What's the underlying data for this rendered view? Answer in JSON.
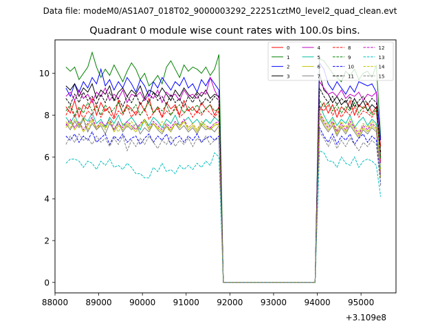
{
  "suptitle": "Data file: modeM0/AS1A07_018T02_9000003292_22251cztM0_level2_quad_clean.evt",
  "chart_data": {
    "type": "line",
    "title": "Quadrant 0 module wise count rates with 100.0s bins.",
    "xlabel": "",
    "ylabel": "",
    "x_offset_label": "+3.109e8",
    "xlim": [
      88000,
      95800
    ],
    "ylim": [
      -0.5,
      11.6
    ],
    "x_ticks": [
      88000,
      89000,
      90000,
      91000,
      92000,
      93000,
      94000,
      95000
    ],
    "x_tick_labels": [
      "88000",
      "89000",
      "90000",
      "91000",
      "92000",
      "93000",
      "94000",
      "95000"
    ],
    "y_ticks": [
      0,
      2,
      4,
      6,
      8,
      10
    ],
    "y_tick_labels": [
      "0",
      "2",
      "4",
      "6",
      "8",
      "10"
    ],
    "grid": false,
    "legend_position": "top-right",
    "legend_columns": 4,
    "x_seg1": [
      88250,
      88350,
      88450,
      88550,
      88650,
      88750,
      88850,
      88950,
      89050,
      89150,
      89250,
      89350,
      89450,
      89550,
      89650,
      89750,
      89850,
      89950,
      90050,
      90150,
      90250,
      90350,
      90450,
      90550,
      90650,
      90750,
      90850,
      90950,
      91050,
      91150,
      91250,
      91350,
      91450,
      91550,
      91650,
      91750,
      91850,
      91950,
      92050
    ],
    "x_seg2": [
      93950,
      94050,
      94150,
      94250,
      94350,
      94450,
      94550,
      94650,
      94750,
      94850,
      94950,
      95050,
      95150,
      95250,
      95350,
      95450
    ],
    "series": [
      {
        "name": "0",
        "color": "#ff0000",
        "dash": "solid",
        "seg1_start": [
          8.4,
          8.1,
          8.7,
          7.9,
          8.5,
          8.3,
          8.8,
          8.0,
          8.6,
          8.2,
          8.4,
          7.9,
          8.7,
          8.1,
          8.5,
          8.3,
          8.0,
          8.6,
          8.2,
          8.8,
          8.1,
          8.4,
          7.9,
          8.6,
          8.3,
          8.5,
          8.0,
          8.7,
          8.2,
          8.4,
          8.1,
          8.6,
          8.3,
          8.5,
          8.0,
          8.4
        ],
        "seg2_values": [
          8.2,
          8.6,
          8.1,
          8.5,
          7.9,
          8.4,
          8.2,
          8.7,
          8.0,
          8.5,
          8.3,
          8.6,
          8.1,
          8.4,
          6.5
        ]
      },
      {
        "name": "1",
        "color": "#008000",
        "dash": "solid",
        "seg1_start": [
          10.3,
          10.1,
          10.3,
          9.7,
          10.0,
          10.3,
          11.0,
          10.3,
          9.8,
          10.2,
          9.9,
          10.4,
          10.0,
          9.6,
          10.1,
          10.5,
          10.2,
          9.7,
          10.0,
          9.4,
          9.6,
          9.9,
          9.5,
          10.3,
          10.6,
          10.2,
          9.8,
          10.4,
          10.1,
          10.3,
          10.2,
          10.0,
          10.3,
          9.9,
          10.2,
          10.9
        ],
        "seg2_values": [
          10.7,
          10.6,
          10.3,
          10.0,
          9.8,
          9.6,
          10.1,
          9.9,
          10.2,
          9.7,
          10.0,
          10.1,
          9.8,
          10.4,
          6.9
        ]
      },
      {
        "name": "2",
        "color": "#0000ff",
        "dash": "solid",
        "seg1_start": [
          9.3,
          8.9,
          9.5,
          9.1,
          9.6,
          9.3,
          9.8,
          9.5,
          10.2,
          9.4,
          9.7,
          9.2,
          9.6,
          9.3,
          9.8,
          9.5,
          9.1,
          9.7,
          9.4,
          8.9,
          9.6,
          9.3,
          9.8,
          9.5,
          9.2,
          9.6,
          9.4,
          9.8,
          9.3,
          9.5,
          9.1,
          9.7,
          9.4,
          9.8,
          9.5,
          9.2
        ],
        "seg2_values": [
          10.5,
          10.2,
          9.5,
          9.2,
          9.6,
          9.3,
          9.0,
          9.4,
          9.1,
          9.6,
          9.5,
          9.4,
          9.5,
          9.1,
          6.8
        ]
      },
      {
        "name": "3",
        "color": "#000000",
        "dash": "solid",
        "seg1_start": [
          9.4,
          9.2,
          9.5,
          8.9,
          9.3,
          9.1,
          9.5,
          8.8,
          9.2,
          9.0,
          9.4,
          8.7,
          9.1,
          9.3,
          8.9,
          9.2,
          9.0,
          9.4,
          8.8,
          9.2,
          9.1,
          8.9,
          9.3,
          9.0,
          8.7,
          9.2,
          8.9,
          9.3,
          9.0,
          8.8,
          9.1,
          8.9,
          9.2,
          8.8,
          9.0,
          8.9
        ],
        "seg2_values": [
          10.0,
          9.2,
          9.0,
          8.6,
          8.9,
          8.5,
          8.7,
          8.3,
          8.8,
          8.4,
          8.7,
          8.2,
          8.5,
          8.3,
          6.0
        ]
      },
      {
        "name": "4",
        "color": "#c000c0",
        "dash": "solid",
        "seg1_start": [
          8.9,
          9.1,
          8.7,
          9.2,
          8.8,
          9.0,
          8.6,
          9.1,
          8.9,
          9.3,
          8.7,
          9.0,
          8.8,
          9.2,
          8.6,
          9.0,
          8.9,
          9.1,
          8.7,
          9.0,
          8.8,
          9.2,
          8.6,
          9.1,
          8.9,
          9.0,
          8.7,
          9.2,
          8.9,
          9.0,
          8.8,
          9.1,
          9.0,
          9.8,
          9.2,
          8.8
        ],
        "seg2_values": [
          9.6,
          9.3,
          9.0,
          9.1,
          8.9,
          9.2,
          8.8,
          9.0,
          8.9,
          9.1,
          8.7,
          9.0,
          8.9,
          9.1,
          5.7
        ]
      },
      {
        "name": "5",
        "color": "#00bfa0",
        "dash": "solid",
        "seg1_start": [
          7.9,
          7.6,
          8.0,
          7.5,
          7.9,
          7.7,
          8.1,
          7.6,
          7.8,
          7.4,
          7.9,
          7.6,
          8.0,
          7.5,
          7.7,
          7.9,
          7.6,
          7.3,
          7.8,
          7.5,
          7.9,
          7.7,
          7.4,
          7.8,
          7.6,
          8.0,
          7.5,
          7.7,
          7.9,
          7.6,
          7.8,
          7.5,
          7.8,
          7.6,
          7.9,
          7.7
        ],
        "seg2_values": [
          8.5,
          8.0,
          7.6,
          7.9,
          7.5,
          7.8,
          7.6,
          8.0,
          7.4,
          7.7,
          7.9,
          7.5,
          7.8,
          7.6,
          5.4
        ]
      },
      {
        "name": "6",
        "color": "#c0c000",
        "dash": "solid",
        "seg1_start": [
          7.4,
          7.7,
          7.3,
          7.6,
          7.2,
          7.5,
          7.8,
          7.3,
          7.6,
          7.4,
          7.7,
          7.2,
          7.5,
          7.3,
          7.6,
          7.4,
          7.2,
          7.5,
          7.7,
          7.3,
          7.6,
          7.4,
          7.2,
          7.5,
          7.3,
          7.6,
          7.4,
          7.7,
          7.3,
          7.5,
          7.2,
          7.6,
          7.4,
          7.3,
          7.5,
          7.6
        ],
        "seg2_values": [
          8.0,
          7.6,
          7.3,
          7.6,
          7.1,
          7.5,
          7.2,
          7.6,
          7.3,
          7.0,
          7.4,
          7.2,
          7.5,
          7.3,
          5.0
        ]
      },
      {
        "name": "7",
        "color": "#808080",
        "dash": "solid",
        "seg1_start": [
          7.6,
          7.3,
          7.7,
          7.4,
          7.8,
          7.2,
          7.6,
          7.3,
          7.5,
          7.1,
          7.6,
          7.3,
          7.7,
          7.2,
          7.5,
          7.3,
          7.6,
          7.1,
          7.4,
          7.2,
          7.6,
          7.3,
          7.1,
          7.5,
          7.2,
          7.6,
          7.3,
          7.5,
          7.2,
          7.4,
          7.1,
          7.5,
          7.3,
          7.4,
          7.2,
          7.5
        ],
        "seg2_values": [
          7.9,
          7.5,
          7.2,
          7.5,
          7.0,
          7.4,
          7.1,
          7.5,
          7.2,
          6.9,
          7.3,
          7.1,
          7.4,
          7.2,
          5.1
        ]
      },
      {
        "name": "8",
        "color": "#ff0000",
        "dash": "dashed",
        "seg1_start": [
          8.0,
          8.4,
          7.9,
          8.3,
          7.8,
          8.2,
          8.0,
          8.5,
          7.9,
          8.3,
          8.1,
          7.8,
          8.2,
          8.0,
          8.4,
          7.9,
          8.2,
          8.0,
          8.3,
          7.8,
          8.1,
          8.3,
          7.9,
          8.2,
          8.0,
          8.4,
          7.9,
          8.1,
          8.3,
          7.9,
          8.2,
          8.0,
          8.3,
          8.1,
          7.9,
          8.2
        ],
        "seg2_values": [
          8.4,
          8.2,
          8.5,
          8.0,
          8.3,
          7.9,
          8.2,
          8.0,
          8.4,
          7.9,
          8.2,
          8.1,
          7.9,
          8.2,
          5.8
        ]
      },
      {
        "name": "9",
        "color": "#008000",
        "dash": "dashed",
        "seg1_start": [
          8.2,
          8.5,
          8.0,
          8.4,
          8.1,
          8.6,
          8.2,
          8.4,
          8.0,
          8.5,
          8.1,
          8.3,
          8.6,
          8.1,
          8.4,
          8.2,
          8.5,
          8.0,
          8.3,
          8.6,
          8.1,
          8.4,
          8.2,
          8.5,
          8.0,
          8.3,
          8.5,
          8.1,
          8.4,
          8.2,
          8.5,
          8.1,
          8.3,
          8.5,
          8.2,
          8.3
        ],
        "seg2_values": [
          8.7,
          8.4,
          8.6,
          8.2,
          8.5,
          8.1,
          8.4,
          8.2,
          8.6,
          8.1,
          8.4,
          8.3,
          8.0,
          8.3,
          5.9
        ]
      },
      {
        "name": "10",
        "color": "#0000ff",
        "dash": "dashed",
        "seg1_start": [
          7.0,
          6.8,
          7.1,
          6.7,
          7.0,
          6.8,
          7.2,
          6.7,
          6.9,
          7.1,
          6.6,
          7.0,
          6.8,
          7.1,
          6.7,
          6.9,
          7.0,
          6.6,
          6.9,
          7.1,
          6.7,
          7.0,
          6.8,
          7.1,
          6.6,
          6.9,
          7.0,
          6.7,
          7.0,
          6.8,
          7.1,
          6.7,
          6.9,
          7.0,
          6.8,
          7.0
        ],
        "seg2_values": [
          7.4,
          7.0,
          6.7,
          7.1,
          6.6,
          7.0,
          6.8,
          7.1,
          6.6,
          6.9,
          7.1,
          6.7,
          7.0,
          6.8,
          4.7
        ]
      },
      {
        "name": "11",
        "color": "#000000",
        "dash": "dashed",
        "seg1_start": [
          8.8,
          8.5,
          9.0,
          8.6,
          9.1,
          8.7,
          8.9,
          8.5,
          9.0,
          8.6,
          9.1,
          8.7,
          8.8,
          8.4,
          8.9,
          8.6,
          9.0,
          8.5,
          8.8,
          8.6,
          9.1,
          8.7,
          8.9,
          8.5,
          9.0,
          8.6,
          8.8,
          8.4,
          8.9,
          8.6,
          9.0,
          8.5,
          8.8,
          8.6,
          8.9,
          8.7
        ],
        "seg2_values": [
          9.3,
          8.9,
          8.6,
          8.9,
          8.5,
          8.8,
          8.6,
          8.9,
          8.4,
          8.7,
          8.9,
          8.5,
          8.8,
          8.6,
          6.2
        ]
      },
      {
        "name": "12",
        "color": "#c000c0",
        "dash": "dashed",
        "seg1_start": [
          7.5,
          7.8,
          7.4,
          7.7,
          7.3,
          7.6,
          7.9,
          7.4,
          7.7,
          7.5,
          7.8,
          7.3,
          7.6,
          7.4,
          7.7,
          7.5,
          7.3,
          7.6,
          7.8,
          7.4,
          7.7,
          7.5,
          7.3,
          7.6,
          7.4,
          7.7,
          7.5,
          7.8,
          7.4,
          7.6,
          7.3,
          7.7,
          7.5,
          7.4,
          7.6,
          7.7
        ],
        "seg2_values": [
          8.1,
          7.7,
          7.4,
          7.7,
          7.2,
          7.6,
          7.3,
          7.7,
          7.4,
          7.1,
          7.5,
          7.3,
          7.6,
          7.4,
          5.2
        ]
      },
      {
        "name": "13",
        "color": "#00bfbf",
        "dash": "dashed",
        "seg1_start": [
          5.7,
          5.9,
          5.9,
          5.8,
          5.5,
          5.8,
          5.7,
          5.4,
          5.8,
          5.6,
          5.9,
          5.5,
          5.6,
          5.4,
          5.7,
          5.5,
          5.2,
          5.2,
          5.0,
          5.0,
          5.5,
          5.3,
          5.7,
          5.3,
          5.4,
          5.2,
          5.6,
          5.4,
          5.6,
          5.4,
          5.7,
          5.5,
          5.8,
          5.6,
          6.2,
          6.0
        ],
        "seg2_values": [
          6.3,
          6.2,
          5.8,
          5.8,
          5.5,
          6.0,
          5.7,
          5.6,
          6.0,
          5.5,
          5.8,
          5.9,
          5.8,
          5.6,
          4.1
        ]
      },
      {
        "name": "14",
        "color": "#c0c000",
        "dash": "dashed",
        "seg1_start": [
          7.7,
          7.4,
          7.8,
          7.5,
          7.9,
          7.3,
          7.7,
          7.4,
          7.6,
          7.3,
          7.8,
          7.5,
          7.2,
          7.6,
          7.4,
          7.7,
          7.3,
          7.5,
          7.8,
          7.4,
          7.6,
          7.3,
          7.7,
          7.4,
          7.2,
          7.6,
          7.5,
          7.7,
          7.4,
          7.6,
          7.3,
          7.7,
          7.5,
          7.3,
          7.6,
          7.5
        ],
        "seg2_values": [
          8.2,
          7.8,
          7.5,
          7.8,
          7.3,
          7.7,
          7.4,
          7.8,
          7.5,
          7.2,
          7.6,
          7.4,
          7.7,
          7.5,
          5.3
        ]
      },
      {
        "name": "15",
        "color": "#808080",
        "dash": "dashed",
        "seg1_start": [
          6.6,
          7.0,
          6.7,
          7.1,
          6.8,
          6.9,
          6.6,
          7.0,
          6.7,
          6.9,
          6.5,
          6.9,
          6.6,
          7.0,
          6.3,
          6.8,
          6.5,
          6.9,
          6.6,
          7.0,
          6.7,
          6.4,
          6.8,
          6.6,
          7.0,
          6.5,
          6.8,
          6.6,
          6.9,
          6.5,
          6.9,
          6.7,
          7.0,
          6.6,
          6.8,
          6.9
        ],
        "seg2_values": [
          7.2,
          6.9,
          6.5,
          6.9,
          6.4,
          6.8,
          6.5,
          6.9,
          6.6,
          6.3,
          6.7,
          6.5,
          6.8,
          6.6,
          4.6
        ]
      }
    ]
  }
}
